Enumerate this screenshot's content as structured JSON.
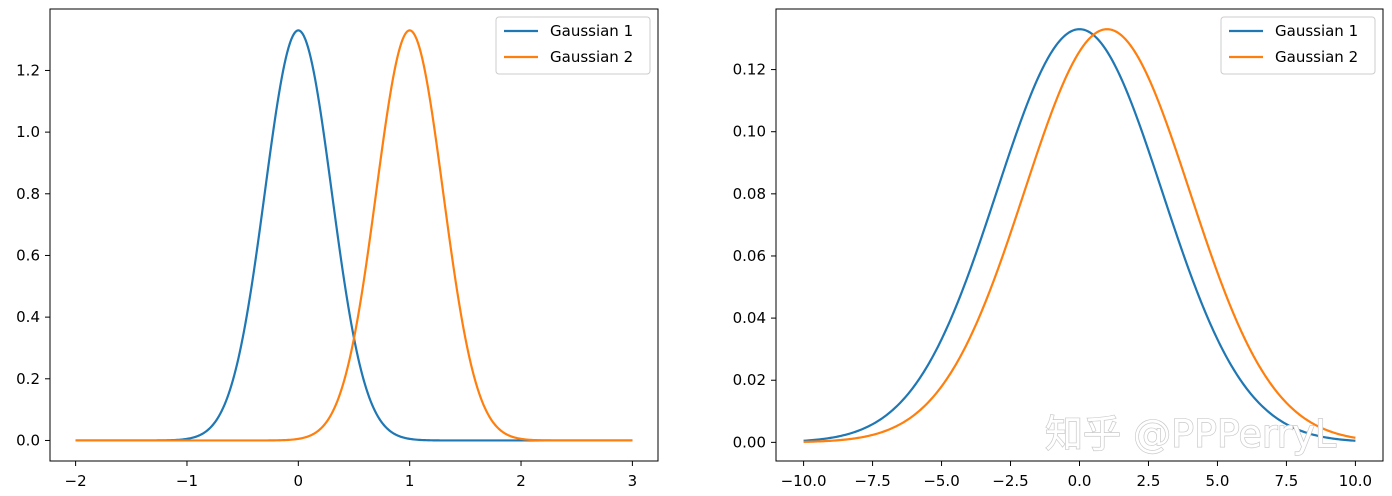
{
  "watermark": "知乎 @PPPerryL",
  "chart_data": [
    {
      "type": "line",
      "title": "",
      "xlabel": "",
      "ylabel": "",
      "xlim": [
        -2.23,
        3.23
      ],
      "ylim": [
        -0.0666,
        1.3993
      ],
      "xticks": [
        -2,
        -1,
        0,
        1,
        2,
        3
      ],
      "xtick_labels": [
        "−2",
        "−1",
        "0",
        "1",
        "2",
        "3"
      ],
      "yticks": [
        0.0,
        0.2,
        0.4,
        0.6,
        0.8,
        1.0,
        1.2
      ],
      "ytick_labels": [
        "0.0",
        "0.2",
        "0.4",
        "0.6",
        "0.8",
        "1.0",
        "1.2"
      ],
      "x_range": [
        -2,
        3
      ],
      "grid": false,
      "legend_position": "top-right",
      "series": [
        {
          "name": "Gaussian 1",
          "distribution": "normal",
          "mean": 0,
          "std": 0.3,
          "peak": 1.33,
          "color": "#1f77b4"
        },
        {
          "name": "Gaussian 2",
          "distribution": "normal",
          "mean": 1,
          "std": 0.3,
          "peak": 1.33,
          "color": "#ff7f0e"
        }
      ]
    },
    {
      "type": "line",
      "title": "",
      "xlabel": "",
      "ylabel": "",
      "xlim": [
        -11.0,
        11.0
      ],
      "ylim": [
        -0.006,
        0.1395
      ],
      "xticks": [
        -10.0,
        -7.5,
        -5.0,
        -2.5,
        0.0,
        2.5,
        5.0,
        7.5,
        10.0
      ],
      "xtick_labels": [
        "−10.0",
        "−7.5",
        "−5.0",
        "−2.5",
        "0.0",
        "2.5",
        "5.0",
        "7.5",
        "10.0"
      ],
      "yticks": [
        0.0,
        0.02,
        0.04,
        0.06,
        0.08,
        0.1,
        0.12
      ],
      "ytick_labels": [
        "0.00",
        "0.02",
        "0.04",
        "0.06",
        "0.08",
        "0.10",
        "0.12"
      ],
      "x_range": [
        -10,
        10
      ],
      "grid": false,
      "legend_position": "top-right",
      "series": [
        {
          "name": "Gaussian 1",
          "distribution": "normal",
          "mean": 0,
          "std": 3,
          "peak": 0.133,
          "color": "#1f77b4"
        },
        {
          "name": "Gaussian 2",
          "distribution": "normal",
          "mean": 1,
          "std": 3,
          "peak": 0.133,
          "color": "#ff7f0e"
        }
      ]
    }
  ]
}
